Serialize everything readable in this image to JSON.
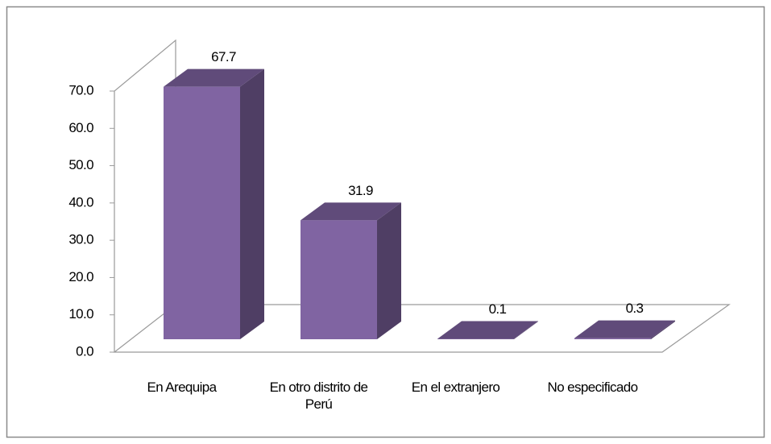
{
  "chart_data": {
    "type": "bar3d",
    "categories": [
      "En Arequipa",
      "En otro distrito de Perú",
      "En el extranjero",
      "No especificado"
    ],
    "values": [
      67.7,
      31.9,
      0.1,
      0.3
    ],
    "color": "#8064a2",
    "ylim": [
      0,
      70
    ],
    "yticks": [
      {
        "value": 0,
        "label": "0.0"
      },
      {
        "value": 10,
        "label": "10.0"
      },
      {
        "value": 20,
        "label": "20.0"
      },
      {
        "value": 30,
        "label": "30.0"
      },
      {
        "value": 40,
        "label": "40.0"
      },
      {
        "value": 50,
        "label": "50.0"
      },
      {
        "value": 60,
        "label": "60.0"
      },
      {
        "value": 70,
        "label": "70.0"
      }
    ]
  }
}
